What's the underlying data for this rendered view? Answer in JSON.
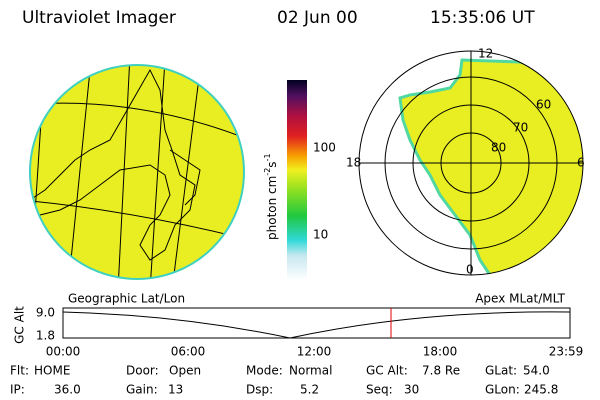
{
  "header": {
    "instrument": "Ultraviolet Imager",
    "date": "02 Jun 00",
    "time": "15:35:06 UT"
  },
  "colorbar": {
    "label": [
      "photon cm",
      "-2",
      "s",
      "-1"
    ],
    "ticks": [
      "100",
      "10"
    ]
  },
  "polar": {
    "mlt_labels": [
      "12",
      "18",
      "6",
      "0"
    ],
    "lat_labels": [
      "60",
      "70",
      "80"
    ]
  },
  "strip": {
    "left_title": "Geographic Lat/Lon",
    "right_title": "Apex MLat/MLT",
    "axis_label": "GC Alt",
    "y_labels": [
      "9.0",
      "1.8"
    ],
    "time_labels": [
      "00:00",
      "06:00",
      "12:00",
      "18:00",
      "23:59"
    ]
  },
  "info": [
    [
      {
        "label": "Flt:",
        "value": "HOME"
      },
      {
        "label": "Door:",
        "value": "Open"
      },
      {
        "label": "Mode:",
        "value": "Normal"
      },
      {
        "label": "GC Alt:",
        "value": "7.8 Re"
      },
      {
        "label": "GLat:",
        "value": "54.0"
      }
    ],
    [
      {
        "label": "IP:",
        "value": "36.0"
      },
      {
        "label": "Gain:",
        "value": "13"
      },
      {
        "label": "Dsp:",
        "value": "5.2"
      },
      {
        "label": "Seq:",
        "value": "30"
      },
      {
        "label": "GLon:",
        "value": "245.8"
      }
    ]
  ]
}
